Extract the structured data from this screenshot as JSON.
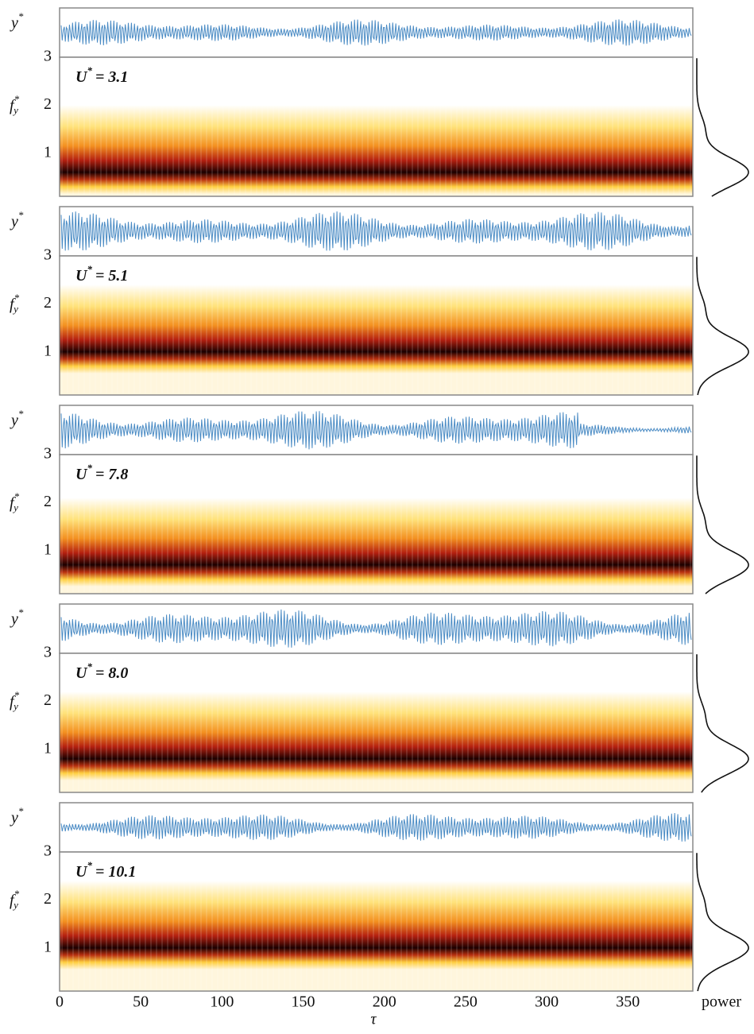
{
  "chart_data": {
    "type": "spectrogram",
    "xlim": [
      0,
      390
    ],
    "xticks": [
      0,
      50,
      100,
      150,
      200,
      250,
      300,
      350
    ],
    "xlabel": "τ",
    "ylim": [
      0.1,
      3
    ],
    "yticks": [
      1,
      2,
      3
    ],
    "y_label": {
      "base": "y",
      "sup": "*"
    },
    "f_label": {
      "base": "f",
      "sup": "*",
      "sub": "y"
    },
    "power_label": "power",
    "panels": [
      {
        "label": {
          "base": "U",
          "sup": "*",
          "rest": "= 3.1"
        },
        "peak_fy": 0.6
      },
      {
        "label": {
          "base": "U",
          "sup": "*",
          "rest": "= 5.1"
        },
        "peak_fy": 1.0
      },
      {
        "label": {
          "base": "U",
          "sup": "*",
          "rest": "= 7.8"
        },
        "peak_fy": 0.7
      },
      {
        "label": {
          "base": "U",
          "sup": "*",
          "rest": "= 8.0"
        },
        "peak_fy": 0.8
      },
      {
        "label": {
          "base": "U",
          "sup": "*",
          "rest": "= 10.1"
        },
        "peak_fy": 1.0
      }
    ]
  }
}
